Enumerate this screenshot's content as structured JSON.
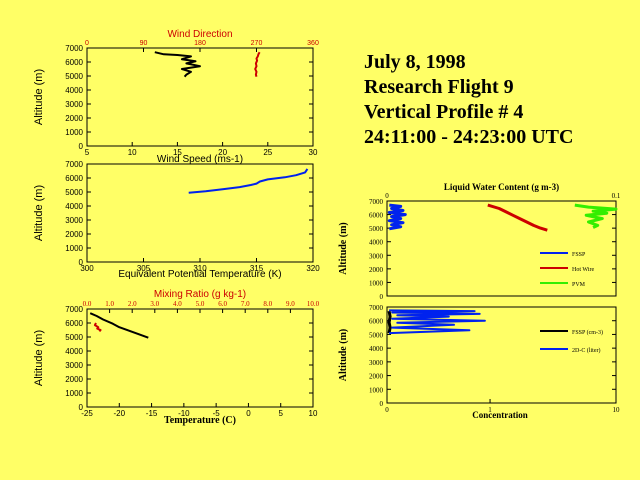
{
  "header": {
    "date": "July 8, 1998",
    "flight": "Research Flight 9",
    "profile": "Vertical Profile # 4",
    "time_range": "24:11:00 - 24:23:00 UTC"
  },
  "colors": {
    "background": "#ffff66",
    "black": "#000000",
    "red": "#cc0000",
    "blue": "#0022ee",
    "green": "#33ee00"
  },
  "chart_data": [
    {
      "id": "wind",
      "type": "line",
      "title": "Wind Direction",
      "top_axis": {
        "label": "Wind Direction",
        "range": [
          0,
          360
        ],
        "ticks": [
          "0",
          "90",
          "180",
          "270",
          "360"
        ]
      },
      "bottom_axis": {
        "label": "Wind Speed (ms-1)",
        "range": [
          5,
          30
        ],
        "ticks": [
          "5",
          "10",
          "15",
          "20",
          "25",
          "30"
        ]
      },
      "ylabel": "Altitude (m)",
      "ylim": [
        0,
        7000
      ],
      "yticks": [
        "0",
        "1000",
        "2000",
        "3000",
        "4000",
        "5000",
        "6000",
        "7000"
      ],
      "series": [
        {
          "name": "",
          "axis": "bottom",
          "color": "#000000",
          "x": [
            12.5,
            13.5,
            15.0,
            16.5,
            15.5,
            17.0,
            16.0,
            17.5,
            15.5,
            16.5,
            16.0,
            15.8
          ],
          "y": [
            6700,
            6550,
            6500,
            6400,
            6200,
            6050,
            5900,
            5700,
            5500,
            5300,
            5100,
            4950
          ]
        },
        {
          "name": "",
          "axis": "top",
          "color": "#cc0000",
          "x": [
            275,
            273,
            272,
            270,
            271,
            269,
            270,
            268,
            270,
            269,
            270
          ],
          "y": [
            6700,
            6550,
            6400,
            6250,
            6100,
            5900,
            5700,
            5500,
            5300,
            5100,
            4950
          ]
        }
      ]
    },
    {
      "id": "theta_e",
      "type": "line",
      "xlabel": "Equivalent Potential Temperature (K)",
      "xlim": [
        300,
        320
      ],
      "xticks": [
        "300",
        "305",
        "310",
        "315",
        "320"
      ],
      "ylabel": "Altitude (m)",
      "ylim": [
        0,
        7000
      ],
      "yticks": [
        "0",
        "1000",
        "2000",
        "3000",
        "4000",
        "5000",
        "6000",
        "7000"
      ],
      "series": [
        {
          "name": "",
          "color": "#0022ee",
          "x": [
            309.0,
            310.5,
            312.0,
            313.5,
            314.5,
            315.0,
            315.3,
            316.0,
            317.5,
            318.5,
            319.3,
            319.5
          ],
          "y": [
            4950,
            5050,
            5200,
            5350,
            5500,
            5600,
            5750,
            5900,
            6050,
            6200,
            6400,
            6650
          ]
        }
      ]
    },
    {
      "id": "mixing",
      "type": "line",
      "title": "Mixing Ratio (g kg-1)",
      "top_axis": {
        "label": "Mixing Ratio (g kg-1)",
        "range": [
          0,
          10
        ],
        "ticks": [
          "0.0",
          "1.0",
          "2.0",
          "3.0",
          "4.0",
          "5.0",
          "6.0",
          "7.0",
          "8.0",
          "9.0",
          "10.0"
        ]
      },
      "bottom_axis": {
        "label": "Temperature (C)",
        "range": [
          -25,
          10
        ],
        "ticks": [
          "-25",
          "-20",
          "-15",
          "-10",
          "-5",
          "0",
          "5",
          "10"
        ]
      },
      "ylabel": "Altitude (m)",
      "ylim": [
        0,
        7000
      ],
      "yticks": [
        "0",
        "1000",
        "2000",
        "3000",
        "4000",
        "5000",
        "6000",
        "7000"
      ],
      "series": [
        {
          "name": "",
          "axis": "bottom",
          "color": "#000000",
          "x": [
            -24.5,
            -23.5,
            -22.5,
            -21.0,
            -20.0,
            -18.5,
            -17.0,
            -15.5
          ],
          "y": [
            6700,
            6500,
            6250,
            5950,
            5700,
            5450,
            5200,
            4950
          ]
        },
        {
          "name": "",
          "axis": "top",
          "color": "#cc0000",
          "x": [
            0.4,
            0.35,
            0.5,
            0.45,
            0.6,
            0.55
          ],
          "y": [
            6000,
            5850,
            5700,
            5600,
            5500,
            5400
          ]
        }
      ]
    },
    {
      "id": "lwc",
      "type": "line",
      "title": "Liquid Water Content (g m-3)",
      "xlim": [
        0,
        0.1
      ],
      "xticks": [
        "0",
        "0.1"
      ],
      "ylabel": "Altitude (m)",
      "ylim": [
        0,
        7000
      ],
      "yticks": [
        "0",
        "1000",
        "2000",
        "3000",
        "4000",
        "5000",
        "6000",
        "7000"
      ],
      "legend": "right",
      "series": [
        {
          "name": "FSSP",
          "color": "#0022ee",
          "x": [
            0.001,
            0.006,
            0.002,
            0.007,
            0.001,
            0.008,
            0.002,
            0.006,
            0.001,
            0.007,
            0.002,
            0.006,
            0.001
          ],
          "y": [
            6700,
            6600,
            6450,
            6300,
            6150,
            6000,
            5850,
            5700,
            5550,
            5400,
            5250,
            5100,
            4950
          ]
        },
        {
          "name": "Hot Wire",
          "color": "#cc0000",
          "x": [
            0.044,
            0.049,
            0.052,
            0.055,
            0.058,
            0.061,
            0.064,
            0.067,
            0.07
          ],
          "y": [
            6700,
            6450,
            6200,
            5950,
            5700,
            5450,
            5200,
            5000,
            4850
          ]
        },
        {
          "name": "PVM",
          "color": "#33ee00",
          "x": [
            0.082,
            0.088,
            0.1,
            0.09,
            0.096,
            0.087,
            0.094,
            0.088,
            0.092,
            0.09
          ],
          "y": [
            6700,
            6550,
            6400,
            6250,
            6100,
            5950,
            5700,
            5450,
            5200,
            5050
          ]
        }
      ]
    },
    {
      "id": "concentration",
      "type": "line",
      "xlabel": "Concentration",
      "xlim": [
        0,
        10
      ],
      "xticks": [
        "0",
        "1",
        "10"
      ],
      "ylabel": "Altitude (m)",
      "ylim": [
        0,
        7000
      ],
      "yticks": [
        "0",
        "1000",
        "2000",
        "3000",
        "4000",
        "5000",
        "6000",
        "7000"
      ],
      "legend": "right",
      "series": [
        {
          "name": "FSSP (cm-3)",
          "color": "#000000",
          "x": [
            0.02,
            0.03,
            0.02,
            0.03,
            0.02
          ],
          "y": [
            6700,
            6300,
            5900,
            5500,
            5100
          ]
        },
        {
          "name": "2D-C (liter)",
          "color": "#0022ee",
          "x": [
            0.02,
            0.85,
            0.05,
            0.9,
            0.1,
            0.6,
            0.05,
            0.95,
            0.1,
            0.65,
            0.05,
            0.8,
            0.02
          ],
          "y": [
            6750,
            6700,
            6600,
            6500,
            6400,
            6300,
            6150,
            6000,
            5850,
            5700,
            5500,
            5300,
            5100
          ]
        }
      ]
    }
  ]
}
